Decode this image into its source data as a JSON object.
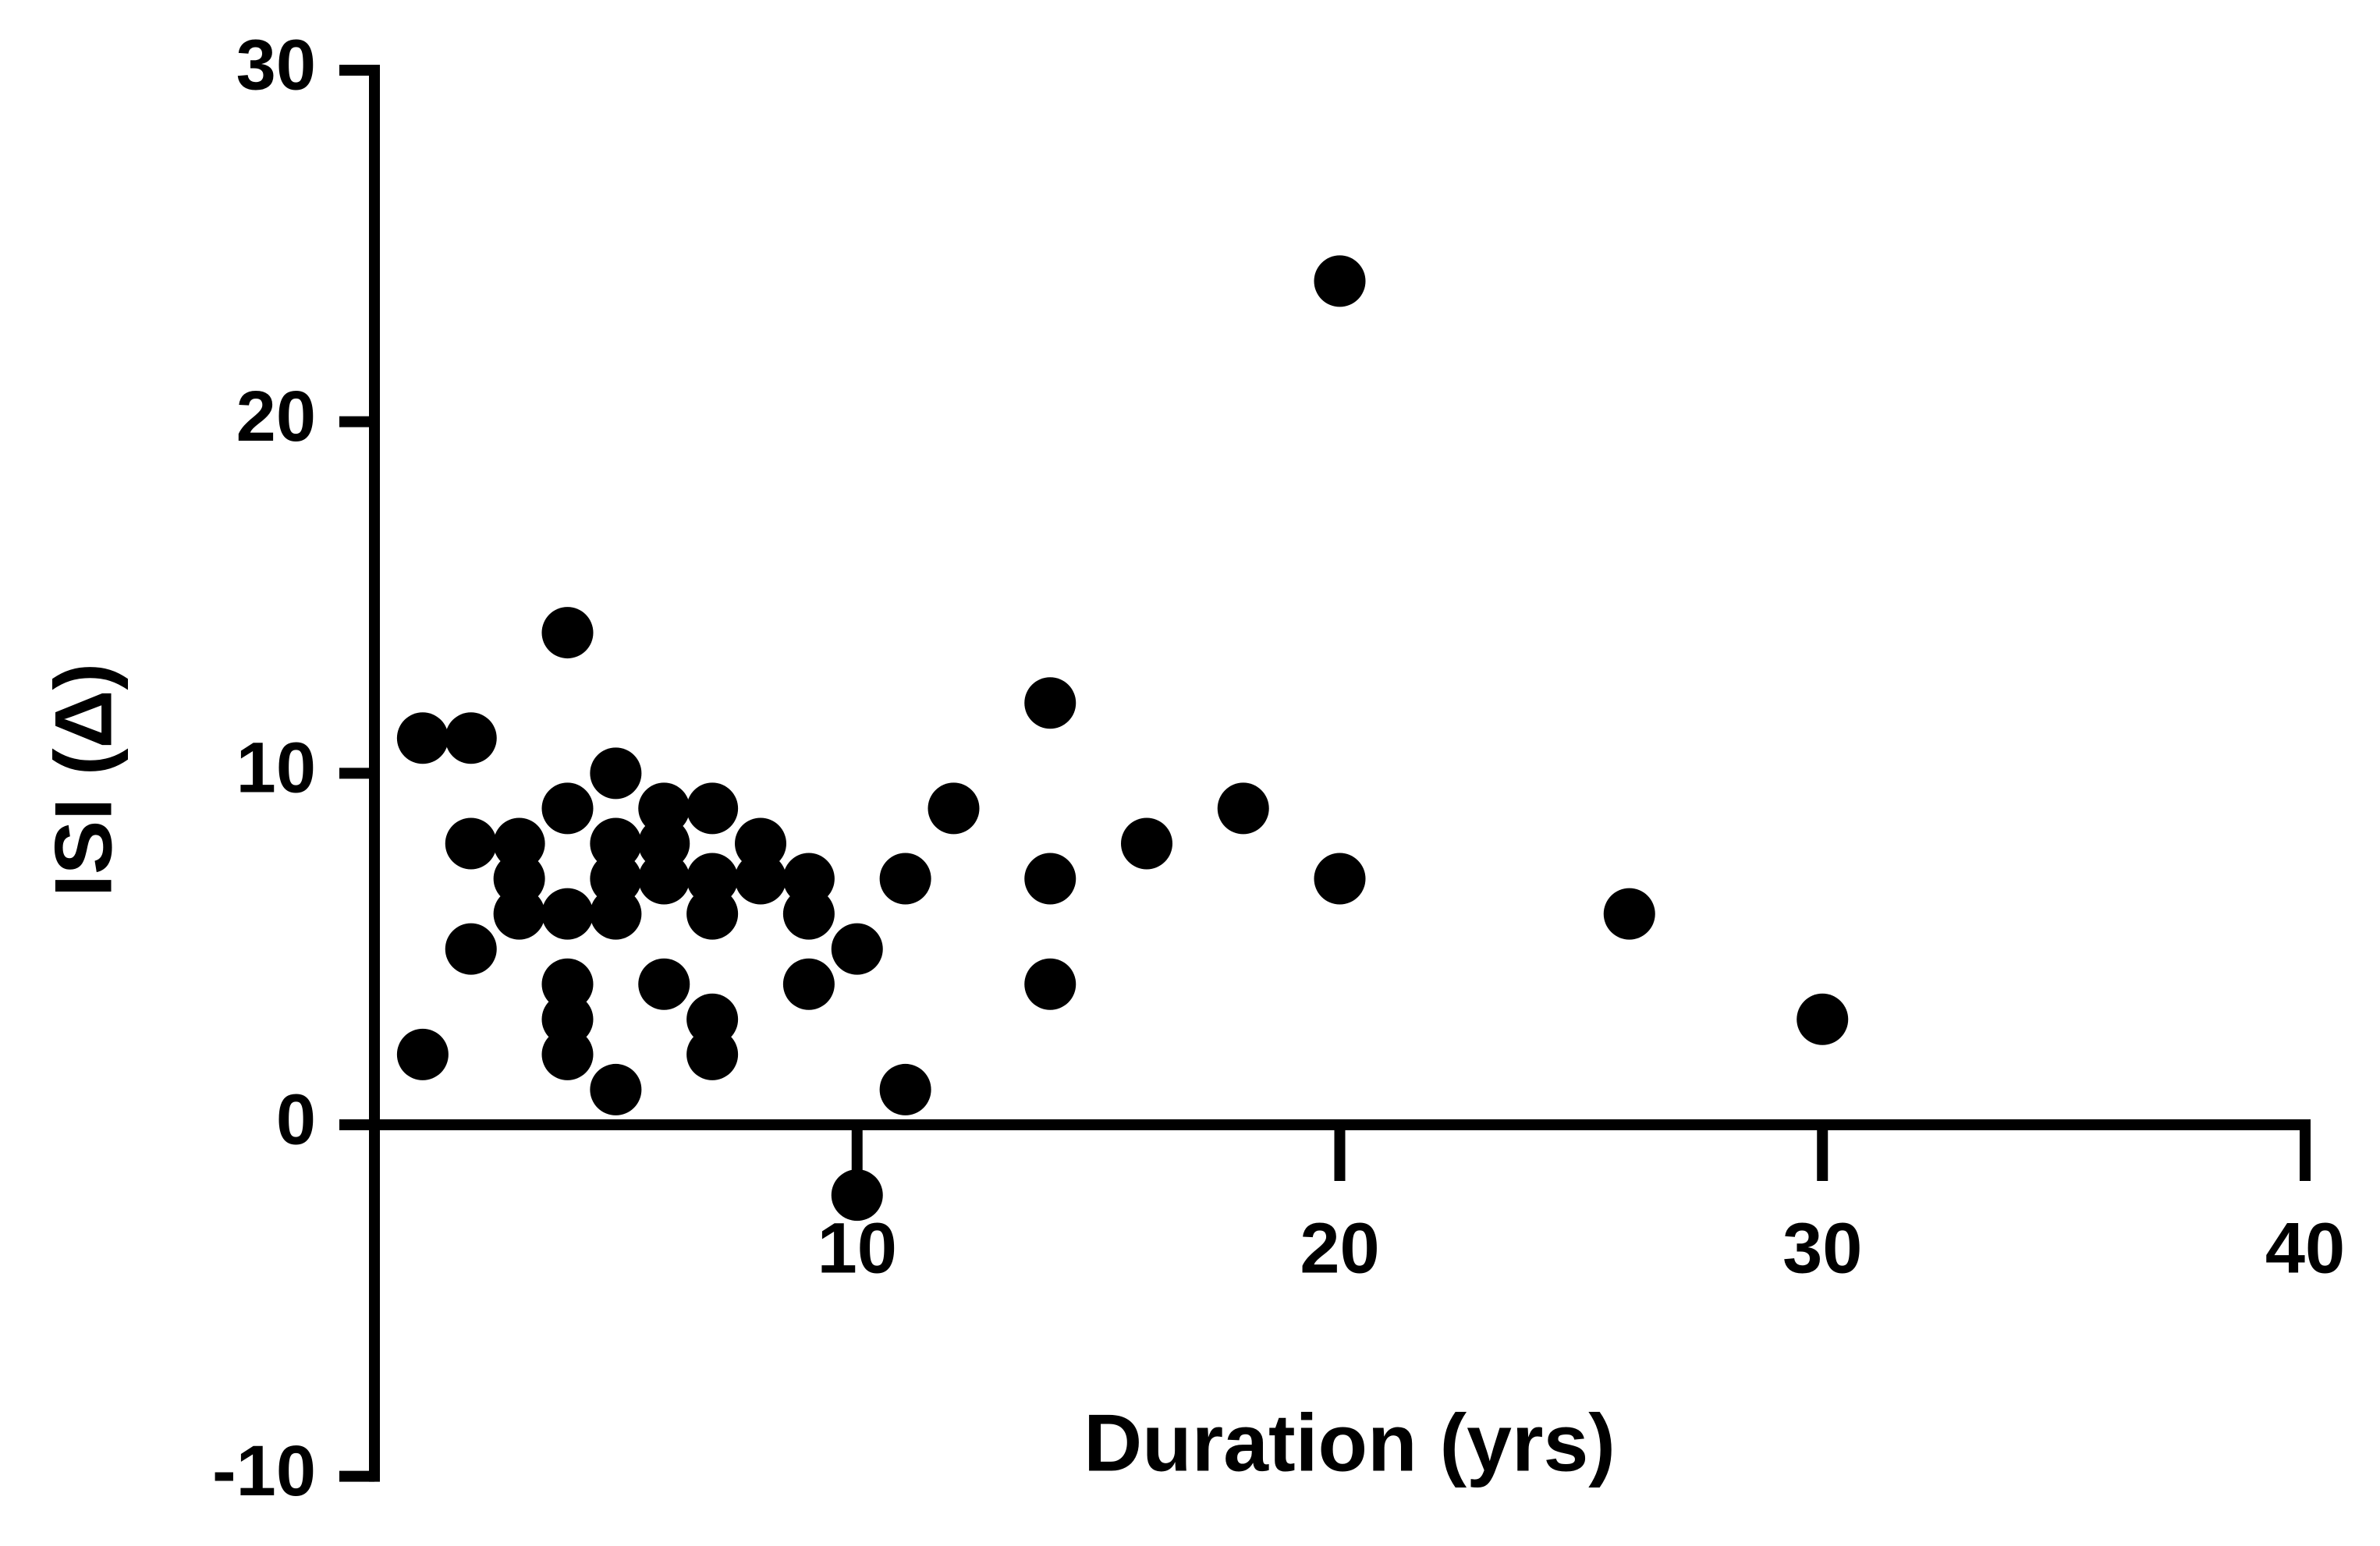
{
  "chart_data": {
    "type": "scatter",
    "title": "",
    "xlabel": "Duration (yrs)",
    "ylabel": "ISI (Δ)",
    "xlim": [
      0,
      40
    ],
    "ylim": [
      -10,
      30
    ],
    "x_ticks": [
      "10",
      "20",
      "30",
      "40"
    ],
    "y_ticks": [
      "-10",
      "0",
      "10",
      "20",
      "30"
    ],
    "grid": false,
    "marker_color": "#000000",
    "series": [
      {
        "points": [
          {
            "x": 1,
            "y": 11
          },
          {
            "x": 1,
            "y": 2
          },
          {
            "x": 2,
            "y": 11
          },
          {
            "x": 2,
            "y": 8
          },
          {
            "x": 2,
            "y": 5
          },
          {
            "x": 3,
            "y": 8
          },
          {
            "x": 3,
            "y": 7
          },
          {
            "x": 3,
            "y": 6
          },
          {
            "x": 4,
            "y": 14
          },
          {
            "x": 4,
            "y": 9
          },
          {
            "x": 4,
            "y": 6
          },
          {
            "x": 4,
            "y": 4
          },
          {
            "x": 4,
            "y": 3
          },
          {
            "x": 4,
            "y": 2
          },
          {
            "x": 5,
            "y": 10
          },
          {
            "x": 5,
            "y": 8
          },
          {
            "x": 5,
            "y": 7
          },
          {
            "x": 5,
            "y": 6
          },
          {
            "x": 5,
            "y": 1
          },
          {
            "x": 6,
            "y": 9
          },
          {
            "x": 6,
            "y": 8
          },
          {
            "x": 6,
            "y": 7
          },
          {
            "x": 6,
            "y": 4
          },
          {
            "x": 7,
            "y": 9
          },
          {
            "x": 7,
            "y": 7
          },
          {
            "x": 7,
            "y": 6
          },
          {
            "x": 7,
            "y": 3
          },
          {
            "x": 7,
            "y": 2
          },
          {
            "x": 8,
            "y": 8
          },
          {
            "x": 8,
            "y": 7
          },
          {
            "x": 9,
            "y": 7
          },
          {
            "x": 9,
            "y": 6
          },
          {
            "x": 9,
            "y": 4
          },
          {
            "x": 10,
            "y": 5
          },
          {
            "x": 10,
            "y": -2
          },
          {
            "x": 11,
            "y": 7
          },
          {
            "x": 11,
            "y": 1
          },
          {
            "x": 12,
            "y": 9
          },
          {
            "x": 14,
            "y": 12
          },
          {
            "x": 14,
            "y": 7
          },
          {
            "x": 14,
            "y": 4
          },
          {
            "x": 16,
            "y": 8
          },
          {
            "x": 18,
            "y": 9
          },
          {
            "x": 20,
            "y": 24
          },
          {
            "x": 20,
            "y": 7
          },
          {
            "x": 26,
            "y": 6
          },
          {
            "x": 30,
            "y": 3
          }
        ]
      }
    ]
  }
}
